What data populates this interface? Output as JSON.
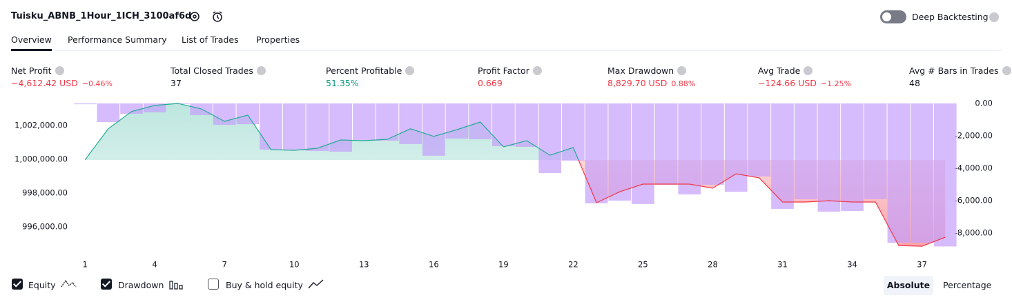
{
  "header": {
    "title": "Tuisku_ABNB_1Hour_1ICH_3100af6d",
    "deep_backtesting": "Deep Backtesting"
  },
  "tabs": [
    "Overview",
    "Performance Summary",
    "List of Trades",
    "Properties"
  ],
  "metrics": [
    {
      "label": "Net Profit",
      "value": "−4,612.42 USD",
      "change": "−0.46%"
    },
    {
      "label": "Total Closed Trades",
      "value": "37"
    },
    {
      "label": "Percent Profitable",
      "value": "51.35%"
    },
    {
      "label": "Profit Factor",
      "value": "0.669"
    },
    {
      "label": "Max Drawdown",
      "value": "8,829.70 USD",
      "change": "0.88%"
    },
    {
      "label": "Avg Trade",
      "value": "−124.66 USD",
      "change": "−1.25%"
    },
    {
      "label": "Avg # Bars in Trades",
      "value": "48"
    }
  ],
  "chart_data": {
    "type": "line",
    "x": [
      1,
      2,
      3,
      4,
      5,
      6,
      7,
      8,
      9,
      10,
      11,
      12,
      13,
      14,
      15,
      16,
      17,
      18,
      19,
      20,
      21,
      22,
      23,
      24,
      25,
      26,
      27,
      28,
      29,
      30,
      31,
      32,
      33,
      34,
      35,
      36,
      37,
      38
    ],
    "xlim": [
      0.55,
      38.2
    ],
    "xticks": [
      1,
      4,
      7,
      10,
      13,
      16,
      19,
      22,
      25,
      28,
      31,
      34,
      37
    ],
    "ylim": [
      994740,
      1003300
    ],
    "yticks": [
      {
        "value": 996000,
        "label": "996,000.00"
      },
      {
        "value": 998000,
        "label": "998,000.00"
      },
      {
        "value": 1000000,
        "label": "1,000,000.00"
      },
      {
        "value": 1002000,
        "label": "1,002,000.00"
      }
    ],
    "y2lim": [
      -8940,
      0
    ],
    "y2ticks": [
      {
        "value": 0,
        "label": "0.00"
      },
      {
        "value": -2000,
        "label": "-2,000.00"
      },
      {
        "value": -4000,
        "label": "-4,000.00"
      },
      {
        "value": -6000,
        "label": "-6,000.00"
      },
      {
        "value": -8000,
        "label": "-8,000.00"
      }
    ],
    "series": [
      {
        "name": "Equity",
        "color": "#22ab94",
        "negative_color": "#f23645",
        "values": [
          999960,
          1001800,
          1002820,
          1003180,
          1003300,
          1002980,
          1002240,
          1002610,
          1000570,
          1000530,
          1000650,
          1001140,
          1001100,
          1001180,
          1001800,
          1001350,
          1001750,
          1002200,
          1000730,
          1001100,
          1000240,
          1000690,
          997430,
          998080,
          998530,
          998530,
          998530,
          998290,
          999140,
          998900,
          997470,
          997470,
          997550,
          997470,
          997470,
          994900,
          994860,
          995390
        ]
      },
      {
        "name": "Drawdown",
        "color": "#c4a0fb",
        "axis": "y2",
        "values": [
          -50,
          -1150,
          -640,
          -550,
          0,
          -720,
          -1320,
          -1280,
          -2850,
          -2890,
          -2940,
          -2980,
          -2300,
          -2300,
          -2510,
          -3230,
          -2170,
          -2210,
          -2640,
          -2680,
          -4300,
          -3530,
          -6170,
          -6000,
          -6210,
          -5020,
          -5620,
          -5020,
          -5450,
          -4510,
          -6510,
          -5910,
          -6680,
          -6640,
          -5910,
          -8600,
          -8600,
          -8830
        ]
      }
    ]
  },
  "controls": {
    "buy_hold": "Buy & hold equity",
    "modes": [
      "Absolute",
      "Percentage"
    ]
  }
}
